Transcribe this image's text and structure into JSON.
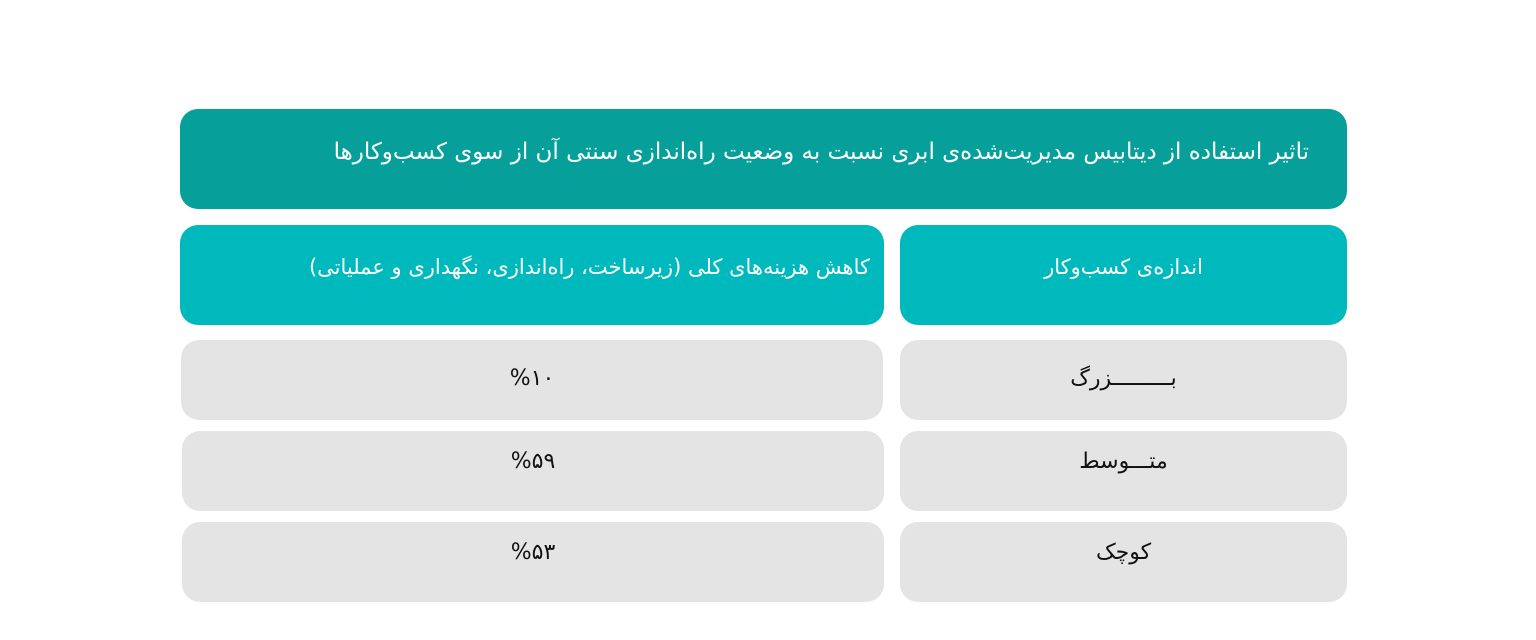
{
  "title": "تاثیر استفاده از دیتابیس مدیریت‌شده‌ی ابری نسبت به وضعیت راه‌اندازی سنتی آن از سوی کسب‌وکارها",
  "columns": [
    "اندازه‌ی کسب‌وکار",
    "کاهش هزینه‌های کلی (زیرساخت، راه‌اندازی، نگهداری و عملیاتی)"
  ],
  "rows": [
    {
      "size": "بـــــــــزرگ",
      "reduction": "%۱۰"
    },
    {
      "size": "متـــوسط",
      "reduction": "%۵۹"
    },
    {
      "size": "کوچک",
      "reduction": "%۵۳"
    }
  ],
  "colors": {
    "title_bg": "#069f9a",
    "header_bg": "#00b9bc",
    "cell_bg": "#e4e4e4"
  }
}
